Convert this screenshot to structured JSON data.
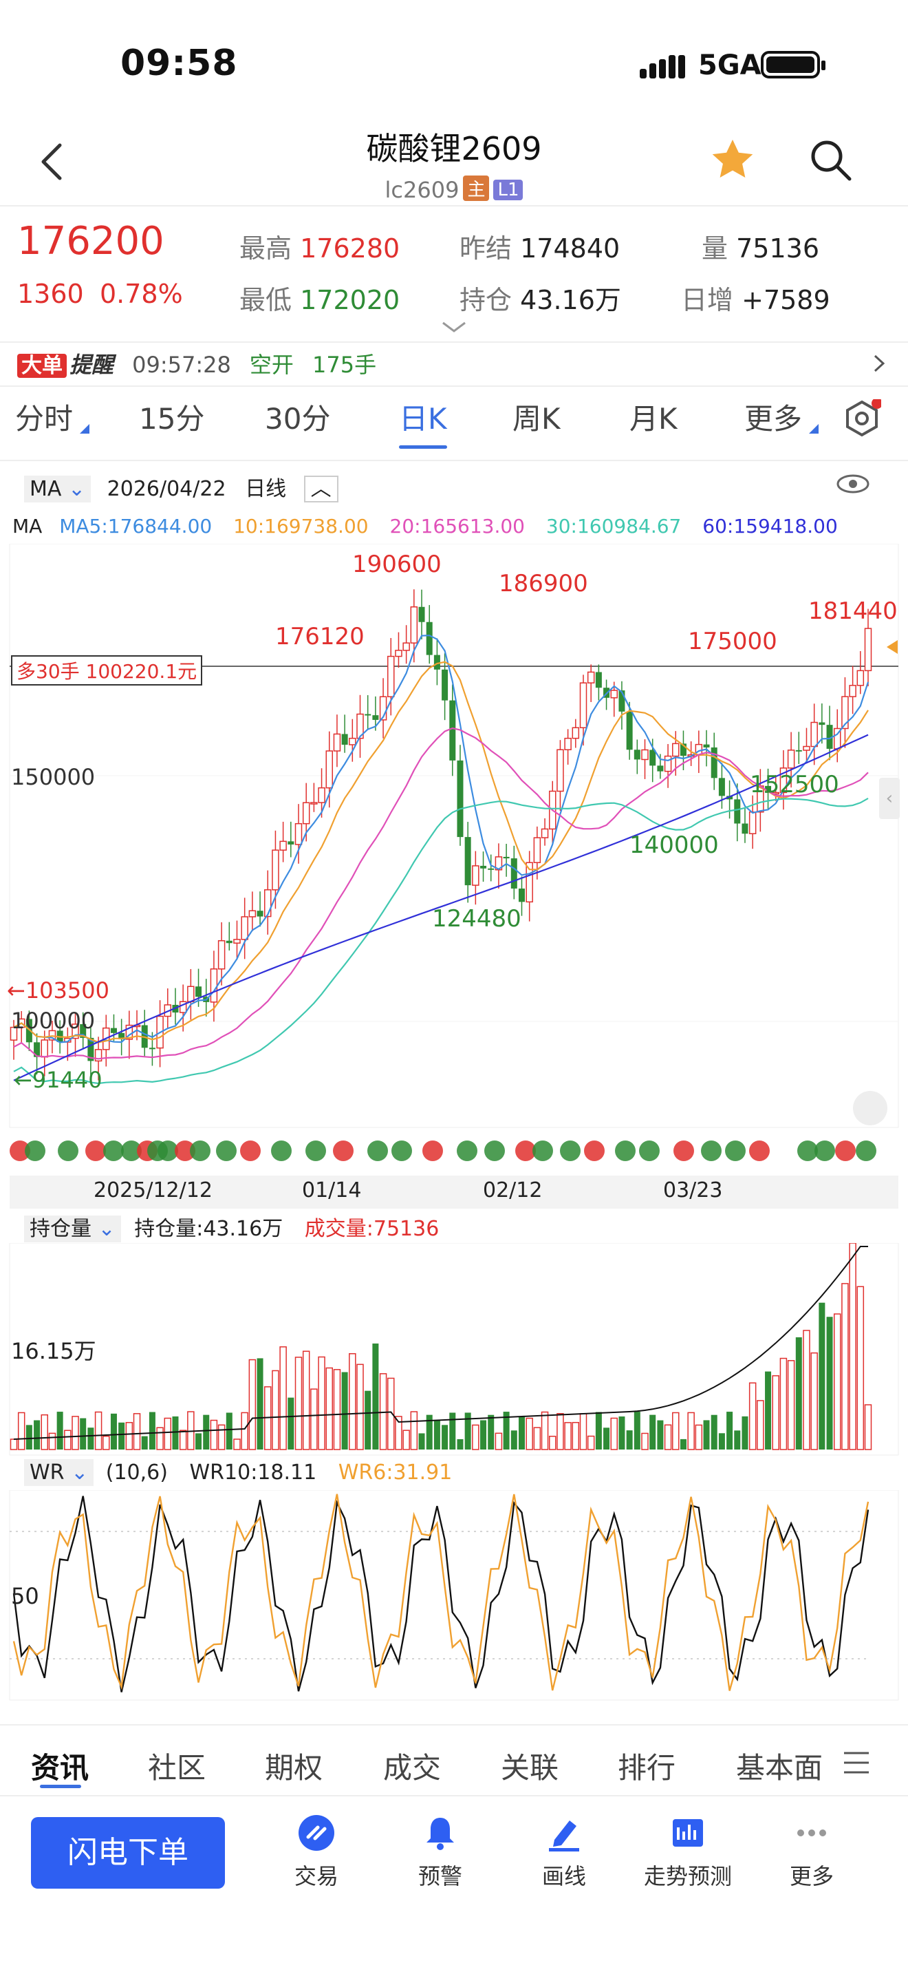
{
  "status_bar": {
    "time": "09:58",
    "network": "5GA"
  },
  "header": {
    "title": "碳酸锂2609",
    "code": "lc2609",
    "tag_main": "主",
    "tag_l1": "L1"
  },
  "quote": {
    "last": "176200",
    "change": "1360",
    "change_pct": "0.78%",
    "high_label": "最高",
    "high": "176280",
    "low_label": "最低",
    "low": "172020",
    "prev_settle_label": "昨结",
    "prev_settle": "174840",
    "open_interest_label": "持仓",
    "open_interest": "43.16万",
    "volume_label": "量",
    "volume": "75136",
    "daily_increase_label": "日增",
    "daily_increase": "+7589"
  },
  "alert": {
    "badge1": "大单",
    "badge2": "提醒",
    "time": "09:57:28",
    "type": "空开",
    "qty": "175手"
  },
  "period_tabs": [
    "分时",
    "15分",
    "30分",
    "日K",
    "周K",
    "月K",
    "更多"
  ],
  "kline_header": {
    "indicator": "MA",
    "date": "2026/04/22",
    "period": "日线"
  },
  "ma_legend": {
    "name": "MA",
    "ma5": "MA5:176844.00",
    "ma10": "10:169738.00",
    "ma20": "20:165613.00",
    "ma30": "30:160984.67",
    "ma60": "60:159418.00"
  },
  "colors": {
    "up": "#e0302e",
    "down": "#2f8c36",
    "ma5": "#3d8ce0",
    "ma10": "#f0a030",
    "ma20": "#e050b8",
    "ma30": "#40c8b0",
    "ma60": "#3030d8",
    "accent": "#3a6fe0"
  },
  "chart_labels": {
    "position_line": "多30手 100220.1元",
    "y_150000": "150000",
    "y_100000": "100000",
    "arrow_high": "←103500",
    "arrow_low": "←91440",
    "peaks": [
      "176120",
      "190600",
      "186900",
      "175000",
      "181440"
    ],
    "troughs": [
      "124480",
      "140000",
      "152500"
    ],
    "dates": [
      "2025/12/12",
      "01/14",
      "02/12",
      "03/23"
    ]
  },
  "volume_panel": {
    "indicator": "持仓量",
    "oi_label": "持仓量:43.16万",
    "vol_label": "成交量:75136",
    "y_tick": "16.15万"
  },
  "wr_panel": {
    "indicator": "WR",
    "params": "(10,6)",
    "wr10": "WR10:18.11",
    "wr6": "WR6:31.91",
    "y_tick": "50"
  },
  "bottom_tabs": [
    "资讯",
    "社区",
    "期权",
    "成交",
    "关联",
    "排行",
    "基本面"
  ],
  "bottom_nav": {
    "flash_order": "闪电下单",
    "items": [
      "交易",
      "预警",
      "画线",
      "走势预测",
      "更多"
    ]
  },
  "chart_data": {
    "type": "candlestick",
    "x_dates_shown": [
      "2025/12/12",
      "01/14",
      "02/12",
      "03/23"
    ],
    "y_ticks": [
      100000,
      150000
    ],
    "labeled_highs": [
      176120,
      190600,
      186900,
      175000,
      181440
    ],
    "labeled_lows": [
      124480,
      140000,
      152500
    ],
    "visible_range_high": 103500,
    "visible_range_low": 91440,
    "last_close": 176200,
    "ma": {
      "ma5": 176844.0,
      "ma10": 169738.0,
      "ma20": 165613.0,
      "ma30": 160984.67,
      "ma60": 159418.0
    },
    "open_interest_last": "43.16万",
    "volume_last": 75136,
    "wr": {
      "wr10": 18.11,
      "wr6": 31.91
    }
  }
}
